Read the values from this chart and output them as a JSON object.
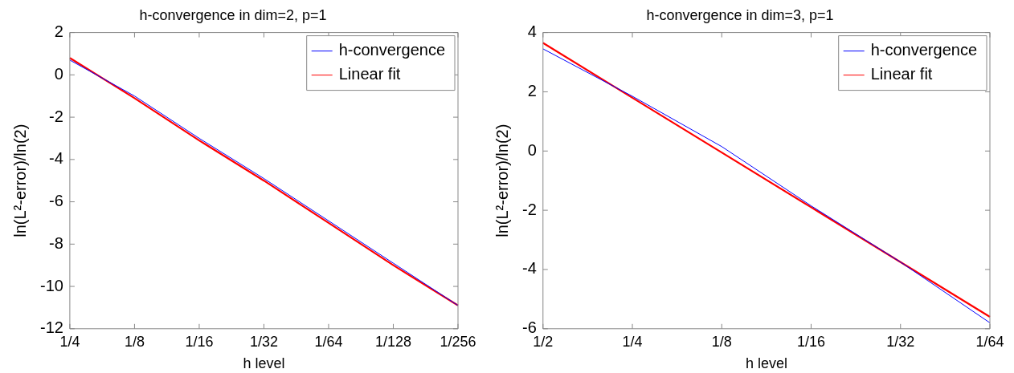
{
  "chart_data": [
    {
      "type": "line",
      "title": "h-convergence in dim=2, p=1",
      "xlabel": "h level",
      "ylabel": "ln(L²-error)/ln(2)",
      "categories": [
        "1/4",
        "1/8",
        "1/16",
        "1/32",
        "1/64",
        "1/128",
        "1/256"
      ],
      "series": [
        {
          "name": "h-convergence",
          "color": "#0000ff",
          "values": [
            0.7,
            -1.0,
            -3.0,
            -4.9,
            -6.9,
            -8.9,
            -10.9
          ]
        },
        {
          "name": "Linear fit",
          "color": "#ff0000",
          "values": [
            0.8,
            -1.1,
            -3.1,
            -5.0,
            -7.0,
            -9.0,
            -10.9
          ]
        }
      ],
      "ylim": [
        -12,
        2
      ],
      "yticks": [
        -12,
        -10,
        -8,
        -6,
        -4,
        -2,
        0,
        2
      ],
      "grid": false,
      "legend": "top right",
      "marker": "none",
      "line_style": "solid"
    },
    {
      "type": "line",
      "title": "h-convergence in dim=3, p=1",
      "xlabel": "h level",
      "ylabel": "ln(L²-error)/ln(2)",
      "categories": [
        "1/2",
        "1/4",
        "1/8",
        "1/16",
        "1/32",
        "1/64"
      ],
      "series": [
        {
          "name": "h-convergence",
          "color": "#0000ff",
          "values": [
            3.45,
            1.85,
            0.15,
            -1.85,
            -3.75,
            -5.8
          ]
        },
        {
          "name": "Linear fit",
          "color": "#ff0000",
          "values": [
            3.65,
            1.8,
            -0.05,
            -1.9,
            -3.75,
            -5.6
          ]
        }
      ],
      "ylim": [
        -6,
        4
      ],
      "yticks": [
        -6,
        -4,
        -2,
        0,
        2,
        4
      ],
      "grid": false,
      "legend": "top right",
      "marker": "none",
      "line_style": "solid"
    }
  ]
}
